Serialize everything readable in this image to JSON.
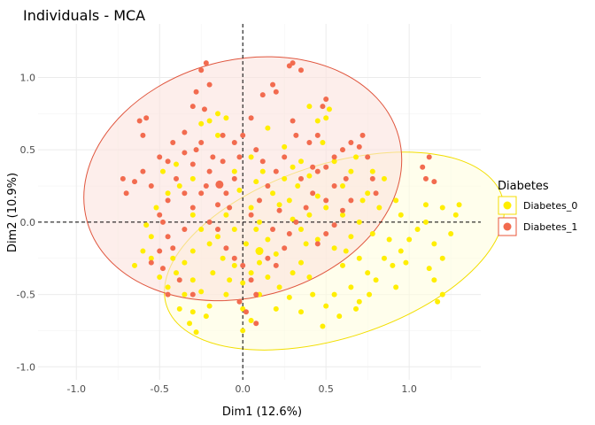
{
  "chart_data": {
    "type": "scatter",
    "title": "Individuals - MCA",
    "xlabel": "Dim1 (12.6%)",
    "ylabel": "Dim2 (10.9%)",
    "xlim": [
      -1.23,
      1.43
    ],
    "ylim": [
      -1.09,
      1.37
    ],
    "xticks": [
      -1.0,
      -0.5,
      0.0,
      0.5,
      1.0
    ],
    "xtick_labels": [
      "-1.0",
      "-0.5",
      "0.0",
      "0.5",
      "1.0"
    ],
    "yticks": [
      -1.0,
      -0.5,
      0.0,
      0.5,
      1.0
    ],
    "ytick_labels": [
      "-1.0",
      "-0.5",
      "0.0",
      "0.5",
      "1.0"
    ],
    "grid": true,
    "reference_lines": {
      "x": 0,
      "y": 0,
      "style": "dashed"
    },
    "legend": {
      "title": "Diabetes",
      "position": "right",
      "entries": [
        {
          "label": "Diabetes_0",
          "color": "#FFEE00",
          "border": "#F5DD00"
        },
        {
          "label": "Diabetes_1",
          "color": "#F26B4F",
          "border": "#E8563A"
        }
      ]
    },
    "series": [
      {
        "name": "Diabetes_0",
        "color": "#FFEE00",
        "ellipse": {
          "cx": 0.55,
          "cy": -0.2,
          "rx": 1.06,
          "ry": 0.6,
          "angle_deg": 18
        },
        "centroid": [
          0.1,
          -0.2
        ],
        "points": [
          [
            0.3,
            0.38
          ],
          [
            0.4,
            0.32
          ],
          [
            0.33,
            0.25
          ],
          [
            0.28,
            0.15
          ],
          [
            0.45,
            0.18
          ],
          [
            0.5,
            0.1
          ],
          [
            0.4,
            0.05
          ],
          [
            0.35,
            -0.05
          ],
          [
            0.45,
            -0.12
          ],
          [
            0.55,
            -0.18
          ],
          [
            0.2,
            -0.22
          ],
          [
            0.1,
            -0.28
          ],
          [
            0.05,
            -0.35
          ],
          [
            0.15,
            -0.38
          ],
          [
            0.22,
            -0.45
          ],
          [
            0.1,
            -0.5
          ],
          [
            0.0,
            -0.42
          ],
          [
            -0.05,
            -0.3
          ],
          [
            0.02,
            -0.15
          ],
          [
            0.08,
            -0.05
          ],
          [
            0.6,
            -0.3
          ],
          [
            0.7,
            -0.25
          ],
          [
            0.75,
            -0.35
          ],
          [
            0.65,
            -0.45
          ],
          [
            0.55,
            -0.5
          ],
          [
            0.5,
            -0.58
          ],
          [
            0.58,
            -0.65
          ],
          [
            0.48,
            -0.72
          ],
          [
            0.7,
            -0.55
          ],
          [
            0.8,
            -0.4
          ],
          [
            0.85,
            -0.25
          ],
          [
            0.9,
            -0.3
          ],
          [
            0.95,
            -0.2
          ],
          [
            1.0,
            -0.12
          ],
          [
            1.05,
            -0.05
          ],
          [
            0.95,
            0.05
          ],
          [
            1.1,
            0.0
          ],
          [
            1.15,
            -0.15
          ],
          [
            1.2,
            -0.25
          ],
          [
            1.25,
            -0.08
          ],
          [
            1.28,
            0.05
          ],
          [
            1.3,
            0.12
          ],
          [
            1.2,
            0.1
          ],
          [
            1.12,
            -0.32
          ],
          [
            1.15,
            -0.4
          ],
          [
            1.2,
            -0.5
          ],
          [
            1.17,
            -0.55
          ],
          [
            1.1,
            0.12
          ],
          [
            0.98,
            -0.28
          ],
          [
            0.92,
            -0.45
          ],
          [
            0.82,
            0.1
          ],
          [
            0.75,
            0.2
          ],
          [
            0.85,
            0.3
          ],
          [
            0.78,
            0.35
          ],
          [
            0.7,
            0.0
          ],
          [
            0.6,
            0.05
          ],
          [
            0.65,
            -0.1
          ],
          [
            0.48,
            0.55
          ],
          [
            0.5,
            0.72
          ],
          [
            0.52,
            0.78
          ],
          [
            0.4,
            0.8
          ],
          [
            0.45,
            0.7
          ],
          [
            -0.2,
            0.7
          ],
          [
            -0.15,
            0.75
          ],
          [
            -0.1,
            0.72
          ],
          [
            -0.25,
            0.68
          ],
          [
            -0.15,
            0.6
          ],
          [
            0.15,
            0.65
          ],
          [
            0.25,
            0.52
          ],
          [
            0.35,
            0.42
          ],
          [
            -0.3,
            0.05
          ],
          [
            -0.25,
            -0.05
          ],
          [
            -0.2,
            -0.15
          ],
          [
            -0.15,
            -0.1
          ],
          [
            -0.3,
            -0.2
          ],
          [
            -0.35,
            -0.28
          ],
          [
            -0.4,
            -0.35
          ],
          [
            -0.3,
            -0.4
          ],
          [
            -0.25,
            -0.48
          ],
          [
            -0.2,
            -0.58
          ],
          [
            -0.3,
            -0.62
          ],
          [
            -0.32,
            -0.7
          ],
          [
            -0.28,
            -0.76
          ],
          [
            -0.22,
            -0.65
          ],
          [
            -0.35,
            -0.5
          ],
          [
            -0.38,
            -0.6
          ],
          [
            -0.45,
            -0.45
          ],
          [
            -0.5,
            -0.38
          ],
          [
            -0.42,
            -0.25
          ],
          [
            -0.55,
            -0.1
          ],
          [
            -0.58,
            -0.02
          ],
          [
            -0.52,
            0.1
          ],
          [
            -0.45,
            0.2
          ],
          [
            -0.38,
            0.25
          ],
          [
            -0.4,
            0.4
          ],
          [
            -0.48,
            0.35
          ],
          [
            -0.3,
            0.3
          ],
          [
            -0.1,
            0.05
          ],
          [
            -0.05,
            -0.05
          ],
          [
            0.05,
            0.1
          ],
          [
            0.1,
            0.0
          ],
          [
            0.15,
            -0.12
          ],
          [
            0.18,
            0.2
          ],
          [
            0.25,
            0.3
          ],
          [
            0.12,
            0.35
          ],
          [
            0.05,
            0.45
          ],
          [
            0.3,
            -0.35
          ],
          [
            0.35,
            -0.28
          ],
          [
            0.4,
            -0.38
          ],
          [
            0.28,
            -0.52
          ],
          [
            0.2,
            -0.6
          ],
          [
            0.35,
            -0.62
          ],
          [
            0.42,
            -0.5
          ],
          [
            0.0,
            -0.6
          ],
          [
            0.05,
            -0.68
          ],
          [
            0.0,
            -0.75
          ],
          [
            -0.1,
            -0.5
          ],
          [
            -0.08,
            -0.4
          ],
          [
            -0.12,
            -0.25
          ],
          [
            -0.18,
            -0.35
          ],
          [
            0.6,
            0.25
          ],
          [
            0.65,
            0.35
          ],
          [
            0.68,
            0.45
          ],
          [
            0.72,
            0.15
          ],
          [
            0.78,
            -0.08
          ],
          [
            0.88,
            -0.12
          ],
          [
            0.92,
            0.15
          ],
          [
            0.62,
            -0.2
          ],
          [
            0.68,
            -0.6
          ],
          [
            0.76,
            -0.5
          ],
          [
            -0.6,
            -0.2
          ],
          [
            -0.65,
            -0.3
          ],
          [
            -0.55,
            -0.25
          ],
          [
            0.22,
            0.12
          ],
          [
            0.3,
            0.02
          ],
          [
            0.38,
            -0.15
          ],
          [
            -0.02,
            0.22
          ],
          [
            0.08,
            0.28
          ],
          [
            -0.05,
            0.35
          ],
          [
            0.55,
            0.42
          ]
        ]
      },
      {
        "name": "Diabetes_1",
        "color": "#F26B4F",
        "ellipse": {
          "cx": 0.0,
          "cy": 0.3,
          "rx": 0.97,
          "ry": 0.82,
          "angle_deg": 15
        },
        "centroid": [
          -0.14,
          0.26
        ],
        "points": [
          [
            -0.25,
            1.05
          ],
          [
            -0.22,
            1.1
          ],
          [
            -0.2,
            0.95
          ],
          [
            -0.28,
            0.9
          ],
          [
            -0.3,
            0.8
          ],
          [
            -0.23,
            0.78
          ],
          [
            -0.12,
            0.6
          ],
          [
            -0.05,
            0.55
          ],
          [
            0.0,
            0.6
          ],
          [
            0.05,
            0.72
          ],
          [
            0.12,
            0.88
          ],
          [
            0.18,
            0.95
          ],
          [
            0.2,
            0.9
          ],
          [
            0.28,
            1.08
          ],
          [
            0.3,
            1.1
          ],
          [
            0.35,
            1.05
          ],
          [
            0.3,
            0.7
          ],
          [
            0.32,
            0.6
          ],
          [
            0.25,
            0.45
          ],
          [
            0.2,
            0.35
          ],
          [
            0.15,
            0.25
          ],
          [
            0.1,
            0.15
          ],
          [
            -0.05,
            0.3
          ],
          [
            -0.1,
            0.2
          ],
          [
            -0.2,
            0.35
          ],
          [
            -0.3,
            0.4
          ],
          [
            -0.35,
            0.48
          ],
          [
            -0.4,
            0.3
          ],
          [
            -0.45,
            0.15
          ],
          [
            -0.5,
            0.05
          ],
          [
            -0.55,
            0.25
          ],
          [
            -0.6,
            0.35
          ],
          [
            -0.65,
            0.28
          ],
          [
            -0.7,
            0.2
          ],
          [
            -0.72,
            0.3
          ],
          [
            -0.62,
            0.7
          ],
          [
            -0.58,
            0.72
          ],
          [
            -0.6,
            0.6
          ],
          [
            -0.5,
            0.45
          ],
          [
            -0.42,
            0.55
          ],
          [
            -0.48,
            0.0
          ],
          [
            -0.45,
            -0.1
          ],
          [
            -0.5,
            -0.2
          ],
          [
            -0.55,
            -0.28
          ],
          [
            -0.48,
            -0.32
          ],
          [
            -0.42,
            -0.18
          ],
          [
            -0.35,
            -0.05
          ],
          [
            -0.3,
            0.1
          ],
          [
            -0.25,
            0.2
          ],
          [
            -0.2,
            0.0
          ],
          [
            -0.15,
            -0.05
          ],
          [
            -0.1,
            -0.18
          ],
          [
            -0.05,
            -0.25
          ],
          [
            0.0,
            -0.3
          ],
          [
            0.05,
            -0.4
          ],
          [
            0.08,
            -0.5
          ],
          [
            -0.02,
            -0.55
          ],
          [
            0.02,
            -0.62
          ],
          [
            0.08,
            -0.7
          ],
          [
            0.1,
            -0.2
          ],
          [
            0.15,
            -0.25
          ],
          [
            0.2,
            -0.3
          ],
          [
            0.25,
            -0.18
          ],
          [
            0.28,
            -0.08
          ],
          [
            0.32,
            0.0
          ],
          [
            0.38,
            0.1
          ],
          [
            0.42,
            0.2
          ],
          [
            0.45,
            0.35
          ],
          [
            0.5,
            0.38
          ],
          [
            0.55,
            0.45
          ],
          [
            0.6,
            0.5
          ],
          [
            0.65,
            0.55
          ],
          [
            0.7,
            0.52
          ],
          [
            0.72,
            0.6
          ],
          [
            0.75,
            0.45
          ],
          [
            0.78,
            0.3
          ],
          [
            0.8,
            0.2
          ],
          [
            0.65,
            0.15
          ],
          [
            0.6,
            0.08
          ],
          [
            0.55,
            -0.02
          ],
          [
            0.5,
            -0.08
          ],
          [
            0.45,
            -0.15
          ],
          [
            0.4,
            0.55
          ],
          [
            0.45,
            0.6
          ],
          [
            0.48,
            0.8
          ],
          [
            0.5,
            0.85
          ],
          [
            0.42,
            0.38
          ],
          [
            0.35,
            0.3
          ],
          [
            0.22,
            0.08
          ],
          [
            0.18,
            -0.05
          ],
          [
            0.05,
            0.05
          ],
          [
            -0.08,
            0.1
          ],
          [
            -0.15,
            0.12
          ],
          [
            -0.22,
            0.25
          ],
          [
            -0.18,
            0.45
          ],
          [
            -0.12,
            0.42
          ],
          [
            -0.02,
            0.45
          ],
          [
            0.08,
            0.5
          ],
          [
            0.12,
            0.42
          ],
          [
            1.08,
            0.38
          ],
          [
            1.12,
            0.45
          ],
          [
            1.1,
            0.3
          ],
          [
            1.15,
            0.28
          ],
          [
            -0.38,
            -0.4
          ],
          [
            -0.45,
            -0.5
          ],
          [
            -0.3,
            -0.5
          ],
          [
            -0.35,
            0.2
          ],
          [
            -0.28,
            0.5
          ],
          [
            -0.45,
            0.42
          ],
          [
            0.62,
            0.3
          ],
          [
            0.55,
            0.25
          ],
          [
            0.5,
            0.15
          ],
          [
            -0.35,
            0.62
          ],
          [
            -0.25,
            0.55
          ]
        ]
      }
    ]
  }
}
